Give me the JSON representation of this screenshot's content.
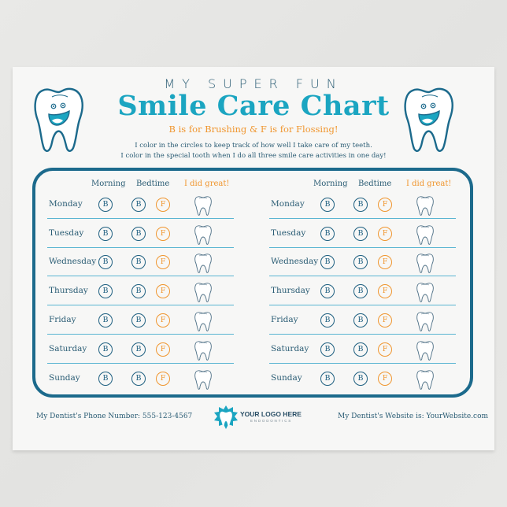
{
  "header": {
    "kicker": "MY SUPER FUN",
    "title": "Smile Care Chart",
    "subtitle": "B is for Brushing & F is for Flossing!",
    "instructions": [
      "I color in the circles to keep track of how well I take care of my teeth.",
      "I color in the special tooth when I do all three smile care activities in one day!"
    ]
  },
  "colors": {
    "title": "#1ba5c1",
    "accent_orange": "#f0962f",
    "dark_teal": "#1c6a8c",
    "text": "#2a5c74",
    "separator": "#5ab5d2"
  },
  "chart": {
    "columns": {
      "morning": "Morning",
      "bedtime": "Bedtime",
      "great": "I did great!"
    },
    "brush_letter": "B",
    "floss_letter": "F",
    "days": [
      "Monday",
      "Tuesday",
      "Wednesday",
      "Thursday",
      "Friday",
      "Saturday",
      "Sunday"
    ],
    "panels": [
      "left",
      "right"
    ]
  },
  "icons": {
    "mascot": "smiling-tooth-icon",
    "reward": "tooth-outline-icon",
    "logo": "tooth-splash-logo-icon"
  },
  "footer": {
    "phone": "My Dentist's Phone Number: 555-123-4567",
    "logo_title": "YOUR LOGO HERE",
    "logo_subtitle": "ENDODONTICS",
    "website": "My Dentist's Website is: YourWebsite.com"
  }
}
